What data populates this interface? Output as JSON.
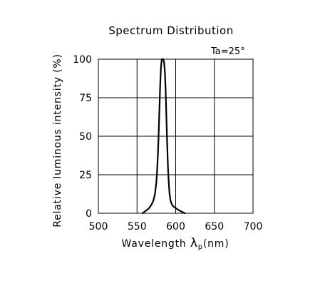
{
  "chart_data": {
    "type": "line",
    "title": "Spectrum Distribution",
    "annotation": "Ta=25°",
    "xlabel": "Wavelength λp(nm)",
    "xlabel_main": "Wavelength ",
    "xlabel_symbol": "λ",
    "xlabel_subscript": "p",
    "xlabel_unit": "(nm)",
    "ylabel": "Relative luminous intensity (%)",
    "xlim": [
      500,
      700
    ],
    "ylim": [
      0,
      100
    ],
    "x_ticks": [
      500,
      550,
      600,
      650,
      700
    ],
    "y_ticks": [
      0,
      25,
      50,
      75,
      100
    ],
    "grid": true,
    "series": [
      {
        "x": [
          557,
          561,
          565,
          568,
          571,
          573,
          575,
          576,
          577,
          578,
          579,
          580,
          581,
          582,
          583,
          584,
          585,
          586,
          587,
          588,
          589,
          590,
          591,
          592,
          593,
          594,
          596,
          598,
          601,
          604,
          608,
          612
        ],
        "y": [
          0,
          1.5,
          3,
          5,
          8,
          12,
          20,
          28,
          38,
          52,
          68,
          84,
          95,
          100,
          100,
          100,
          98,
          92,
          80,
          62,
          45,
          30,
          20,
          13,
          9,
          7,
          5,
          4,
          3,
          2,
          1,
          0
        ],
        "color": "#000000"
      }
    ]
  }
}
